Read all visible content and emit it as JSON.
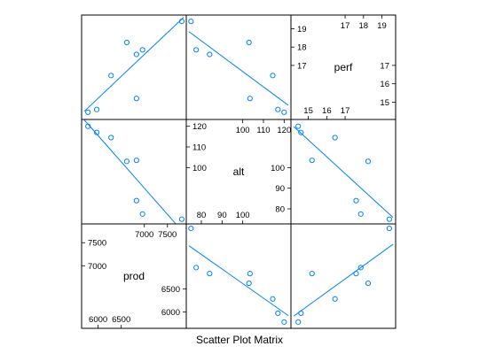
{
  "chart_data": {
    "type": "scatter",
    "title": "Scatter Plot Matrix",
    "variables": [
      {
        "name": "prod",
        "range": [
          5700,
          7850
        ],
        "ticks_low": [
          6000,
          6500
        ],
        "ticks_high": [
          7000,
          7500
        ],
        "side_ticks": [
          6000,
          6500,
          7000,
          7500
        ]
      },
      {
        "name": "alt",
        "range": [
          74,
          122
        ],
        "ticks_low": [
          80,
          90,
          100
        ],
        "ticks_high": [
          100,
          110,
          120
        ],
        "side_ticks": [
          80,
          90,
          100,
          110,
          120
        ]
      },
      {
        "name": "perf",
        "range": [
          14.2,
          19.6
        ],
        "ticks_low": [
          15,
          16,
          17
        ],
        "ticks_high": [
          17,
          18,
          19
        ],
        "side_ticks": [
          15,
          16,
          17,
          18,
          19
        ]
      }
    ],
    "records": [
      {
        "prod": 5780,
        "alt": 120,
        "perf": 14.45
      },
      {
        "prod": 5970,
        "alt": 117,
        "perf": 14.6
      },
      {
        "prod": 6280,
        "alt": 114.5,
        "perf": 16.45
      },
      {
        "prod": 6620,
        "alt": 103,
        "perf": 18.25
      },
      {
        "prod": 6830,
        "alt": 84,
        "perf": 17.6
      },
      {
        "prod": 6830,
        "alt": 103.5,
        "perf": 15.2
      },
      {
        "prod": 6960,
        "alt": 77.5,
        "perf": 17.85
      },
      {
        "prod": 7810,
        "alt": 75,
        "perf": 19.4
      }
    ],
    "fit_line": true,
    "grid": false
  }
}
